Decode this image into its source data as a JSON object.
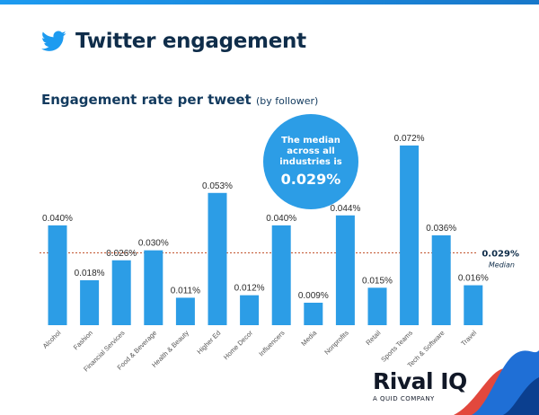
{
  "header": {
    "title": "Twitter engagement"
  },
  "subtitle": {
    "main": "Engagement rate per tweet",
    "note": "(by follower)"
  },
  "callout": {
    "text": "The median across all industries is",
    "value": "0.029%"
  },
  "median_line": {
    "label": "0.029%",
    "sublabel": "Median"
  },
  "brand": {
    "name": "Rival IQ",
    "tagline": "A QUID COMPANY"
  },
  "colors": {
    "bar": "#2c9de6",
    "title": "#0f2d4a",
    "median_line": "#c2542f",
    "brand_wave_red": "#e2483d",
    "brand_wave_blue": "#1f6fd6"
  },
  "icons": {
    "logo": "twitter-bird-icon"
  },
  "chart_data": {
    "type": "bar",
    "title": "Engagement rate per tweet",
    "categories": [
      "Alcohol",
      "Fashion",
      "Financial Services",
      "Food & Beverage",
      "Health & Beauty",
      "Higher Ed",
      "Home Decor",
      "Influencers",
      "Media",
      "Nonprofits",
      "Retail",
      "Sports Teams",
      "Tech & Software",
      "Travel"
    ],
    "values": [
      0.04,
      0.018,
      0.026,
      0.03,
      0.011,
      0.053,
      0.012,
      0.04,
      0.009,
      0.044,
      0.015,
      0.072,
      0.036,
      0.016
    ],
    "value_labels": [
      "0.040%",
      "0.018%",
      "0.026%",
      "0.030%",
      "0.011%",
      "0.053%",
      "0.012%",
      "0.040%",
      "0.009%",
      "0.044%",
      "0.015%",
      "0.072%",
      "0.036%",
      "0.016%"
    ],
    "unit": "%",
    "median": 0.029,
    "ylim": [
      0,
      0.072
    ],
    "grid": false,
    "legend": "none"
  }
}
